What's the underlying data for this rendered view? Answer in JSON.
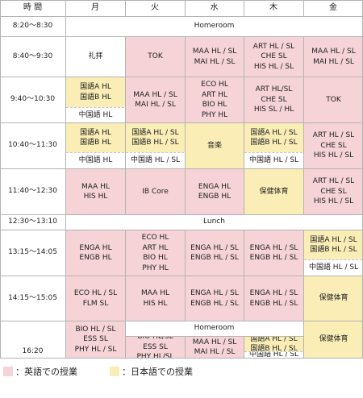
{
  "days": [
    "月",
    "火",
    "水",
    "木",
    "金"
  ],
  "time_header": "時 間",
  "rows": [
    {
      "time": "8:20～8:30"
    },
    {
      "time": "8:40～9:30"
    },
    {
      "time": "9:40～10:30"
    },
    {
      "time": "10:40～11:30"
    },
    {
      "time": "11:40～12:30"
    },
    {
      "time": "12:30～13:10"
    },
    {
      "time": "13:15～14:05"
    },
    {
      "time": "14:15～15:05"
    },
    {
      "time": "16:20"
    }
  ],
  "bands": {
    "homeroom": "Homeroom",
    "lunch": "Lunch",
    "homeroom_last": "Homeroom"
  },
  "cells": [
    {
      "id": "r1-mon",
      "col": 1,
      "top": 45,
      "bot": 95,
      "color": "none",
      "text": "礼拝"
    },
    {
      "id": "r1-tue",
      "col": 2,
      "top": 45,
      "bot": 95,
      "color": "pink",
      "text": "TOK"
    },
    {
      "id": "r1-wed",
      "col": 3,
      "top": 45,
      "bot": 95,
      "color": "pink",
      "text": "MAA HL / SL\nMAI HL / SL"
    },
    {
      "id": "r1-thu",
      "col": 4,
      "top": 45,
      "bot": 95,
      "color": "pink",
      "text": "ART HL / SL\nCHE SL\nHIS HL / SL"
    },
    {
      "id": "r1-fri",
      "col": 5,
      "top": 45,
      "bot": 95,
      "color": "pink",
      "text": "MAA HL / SL\nMAI HL / SL"
    },
    {
      "id": "r2-mon-a",
      "col": 1,
      "top": 95,
      "bot": 133,
      "color": "yel",
      "text": "国語A HL\n国語B HL"
    },
    {
      "id": "r2-mon-b",
      "col": 1,
      "top": 133,
      "bot": 152,
      "color": "none",
      "text": "中国語 HL"
    },
    {
      "id": "r2-tue",
      "col": 2,
      "top": 95,
      "bot": 152,
      "color": "pink",
      "text": "MAA HL / SL\nMAI HL / SL"
    },
    {
      "id": "r2-wed",
      "col": 3,
      "top": 95,
      "bot": 152,
      "color": "pink",
      "text": "ECO HL\nART HL\nBIO HL\nPHY HL"
    },
    {
      "id": "r2-thu",
      "col": 4,
      "top": 95,
      "bot": 152,
      "color": "pink",
      "text": "ART HL/SL\nCHE SL\nHIS SL / HL"
    },
    {
      "id": "r2-fri",
      "col": 5,
      "top": 95,
      "bot": 152,
      "color": "pink",
      "text": "TOK"
    },
    {
      "id": "r3-mon-a",
      "col": 1,
      "top": 152,
      "bot": 189,
      "color": "yel",
      "text": "国語A HL\n国語B HL"
    },
    {
      "id": "r3-mon-b",
      "col": 1,
      "top": 189,
      "bot": 209,
      "color": "none",
      "text": "中国語 HL"
    },
    {
      "id": "r3-tue-a",
      "col": 2,
      "top": 152,
      "bot": 189,
      "color": "yel",
      "text": "国語A HL / SL\n国語B HL / SL"
    },
    {
      "id": "r3-tue-b",
      "col": 2,
      "top": 189,
      "bot": 209,
      "color": "none",
      "text": "中国語 HL / SL"
    },
    {
      "id": "r3-wed",
      "col": 3,
      "top": 152,
      "bot": 209,
      "color": "yel",
      "text": "音楽"
    },
    {
      "id": "r3-thu-a",
      "col": 4,
      "top": 152,
      "bot": 189,
      "color": "yel",
      "text": "国語A HL / SL\n国語B HL / SL"
    },
    {
      "id": "r3-thu-b",
      "col": 4,
      "top": 189,
      "bot": 209,
      "color": "none",
      "text": "中国語 HL / SL"
    },
    {
      "id": "r3-fri",
      "col": 5,
      "top": 152,
      "bot": 209,
      "color": "pink",
      "text": "ART HL / SL\nCHE SL\nHIS HL / SL"
    },
    {
      "id": "r4-mon",
      "col": 1,
      "top": 209,
      "bot": 266,
      "color": "pink",
      "text": "MAA HL\nHIS HL"
    },
    {
      "id": "r4-tue",
      "col": 2,
      "top": 209,
      "bot": 266,
      "color": "pink",
      "text": "IB Core"
    },
    {
      "id": "r4-wed",
      "col": 3,
      "top": 209,
      "bot": 266,
      "color": "pink",
      "text": "ENGA HL\nENGB HL"
    },
    {
      "id": "r4-thu",
      "col": 4,
      "top": 209,
      "bot": 266,
      "color": "yel",
      "text": "保健体育"
    },
    {
      "id": "r4-fri",
      "col": 5,
      "top": 209,
      "bot": 266,
      "color": "pink",
      "text": "ART HL / SL\nCHE SL\nHIS HL / SL"
    },
    {
      "id": "r6-mon",
      "col": 1,
      "top": 285,
      "bot": 342,
      "color": "pink",
      "text": "ENGA HL\nENGB HL"
    },
    {
      "id": "r6-tue",
      "col": 2,
      "top": 285,
      "bot": 342,
      "color": "pink",
      "text": "ECO HL\nART HL\nBIO HL\nPHY HL"
    },
    {
      "id": "r6-wed",
      "col": 3,
      "top": 285,
      "bot": 342,
      "color": "pink",
      "text": "ENGA HL / SL\nENGB HL / SL"
    },
    {
      "id": "r6-thu",
      "col": 4,
      "top": 285,
      "bot": 342,
      "color": "pink",
      "text": "ENGA HL / SL\nENGB HL / SL"
    },
    {
      "id": "r6-fri-a",
      "col": 5,
      "top": 285,
      "bot": 322,
      "color": "yel",
      "text": "国語A HL / SL\n国語B HL / SL"
    },
    {
      "id": "r6-fri-b",
      "col": 5,
      "top": 322,
      "bot": 342,
      "color": "none",
      "text": "中国語 HL / SL"
    },
    {
      "id": "r7-mon",
      "col": 1,
      "top": 342,
      "bot": 398,
      "color": "pink",
      "text": "ECO HL / SL\nFLM SL"
    },
    {
      "id": "r7-tue",
      "col": 2,
      "top": 342,
      "bot": 398,
      "color": "pink",
      "text": "MAA HL\nHIS HL"
    },
    {
      "id": "r7-wed",
      "col": 3,
      "top": 342,
      "bot": 398,
      "color": "pink",
      "text": "ENGA HL / SL\nENGB HL / SL"
    },
    {
      "id": "r7-thu",
      "col": 4,
      "top": 342,
      "bot": 398,
      "color": "pink",
      "text": "ENGA HL / SL\nENGB HL / SL"
    },
    {
      "id": "r7-fri",
      "col": 5,
      "top": 342,
      "bot": 398,
      "color": "yel",
      "text": "保健体育"
    },
    {
      "id": "r8-mon",
      "col": 1,
      "top": 398,
      "bot": 436,
      "color": "pink",
      "text": "BIO HL / SL\nESS SL\nPHY HL / SL"
    },
    {
      "id": "r8-tue",
      "col": 2,
      "top": 417,
      "bot": 436,
      "color": "pink",
      "text": "BIO HL/SL\nESS SL\nPHY HL/SL"
    },
    {
      "id": "r8-wed",
      "col": 3,
      "top": 417,
      "bot": 436,
      "color": "pink",
      "text": "MAA HL / SL\nMAI HL / SL"
    },
    {
      "id": "r8-thu-a",
      "col": 4,
      "top": 417,
      "bot": 436,
      "color": "yel",
      "text": "国語A HL / SL\n国語B HL / SL"
    },
    {
      "id": "r8-thu-b",
      "col": 4,
      "top": 436,
      "bot": 436,
      "color": "none",
      "text": "中国語 HL / SL"
    },
    {
      "id": "r8-fri",
      "col": 5,
      "top": 398,
      "bot": 436,
      "color": "yel",
      "text": "保健体育"
    }
  ],
  "legend": [
    {
      "color": "#f5d3d7",
      "label": "：英語での授業"
    },
    {
      "color": "#faedb6",
      "label": "：日本語での授業"
    }
  ]
}
